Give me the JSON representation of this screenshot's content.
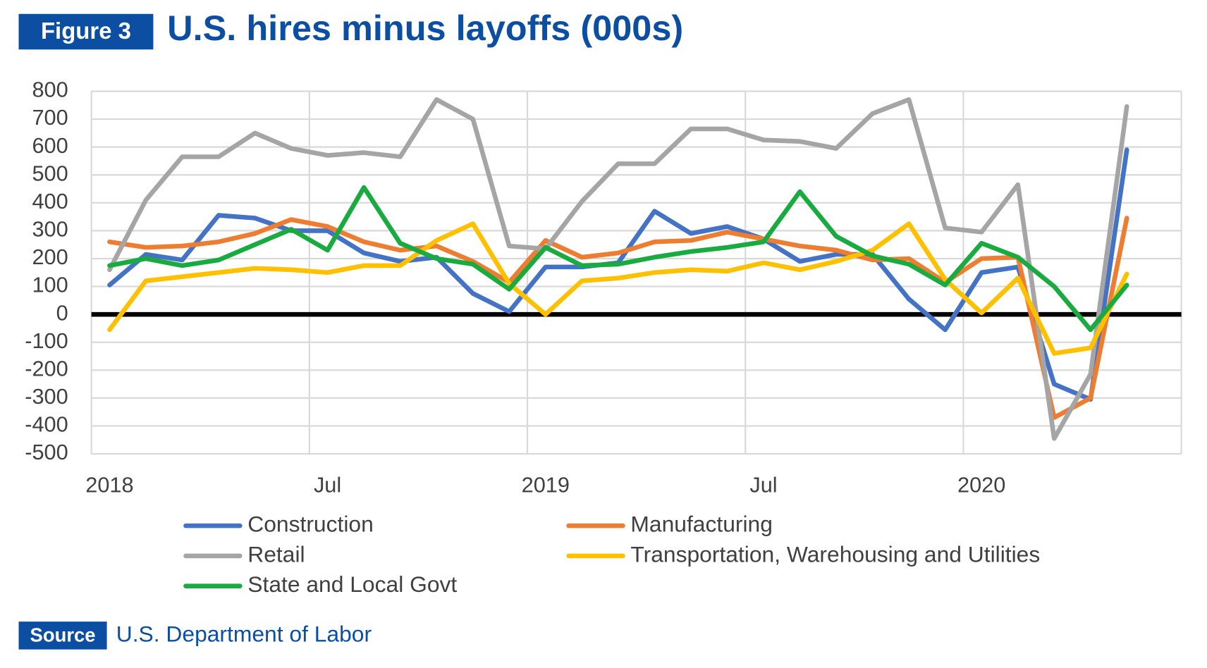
{
  "chart_data": {
    "type": "line",
    "figure_label": "Figure 3",
    "title": "U.S. hires minus layoffs (000s)",
    "source_label": "Source",
    "source": "U.S. Department of Labor",
    "categories": [
      "2018",
      null,
      null,
      null,
      null,
      null,
      "Jul",
      null,
      null,
      null,
      null,
      null,
      "2019",
      null,
      null,
      null,
      null,
      null,
      "Jul",
      null,
      null,
      null,
      null,
      null,
      "2020",
      null,
      null,
      null,
      null,
      null
    ],
    "ylim": [
      -500,
      800
    ],
    "yticks": [
      -500,
      -400,
      -300,
      -200,
      -100,
      0,
      100,
      200,
      300,
      400,
      500,
      600,
      700,
      800
    ],
    "grid": true,
    "legend": "bottom",
    "series": [
      {
        "name": "Construction",
        "color": "#4472c4",
        "values": [
          105,
          215,
          195,
          355,
          345,
          300,
          300,
          220,
          190,
          205,
          75,
          10,
          170,
          170,
          185,
          370,
          290,
          315,
          270,
          190,
          215,
          215,
          55,
          -55,
          150,
          170,
          -250,
          -305,
          590,
          null
        ]
      },
      {
        "name": "Manufacturing",
        "color": "#ed7d31",
        "values": [
          260,
          240,
          245,
          260,
          290,
          340,
          315,
          260,
          230,
          245,
          190,
          115,
          265,
          205,
          220,
          260,
          265,
          295,
          270,
          245,
          230,
          195,
          200,
          115,
          200,
          205,
          -370,
          -300,
          345,
          null
        ]
      },
      {
        "name": "Retail",
        "color": "#a5a5a5",
        "values": [
          160,
          410,
          565,
          565,
          650,
          595,
          570,
          580,
          565,
          770,
          700,
          245,
          235,
          405,
          540,
          540,
          665,
          665,
          625,
          620,
          595,
          720,
          770,
          310,
          295,
          465,
          -445,
          -215,
          745,
          null
        ]
      },
      {
        "name": "Transportation, Warehousing and Utilities",
        "color": "#ffc000",
        "values": [
          -55,
          120,
          135,
          150,
          165,
          160,
          150,
          175,
          175,
          265,
          325,
          110,
          0,
          120,
          130,
          150,
          160,
          155,
          185,
          160,
          190,
          230,
          325,
          125,
          5,
          130,
          -140,
          -120,
          145,
          null
        ]
      },
      {
        "name": "State and Local Govt",
        "color": "#1aab40",
        "values": [
          175,
          200,
          175,
          195,
          250,
          305,
          230,
          455,
          255,
          200,
          180,
          90,
          240,
          175,
          180,
          205,
          225,
          240,
          260,
          440,
          280,
          210,
          180,
          105,
          255,
          205,
          100,
          -55,
          105,
          null
        ]
      }
    ]
  }
}
